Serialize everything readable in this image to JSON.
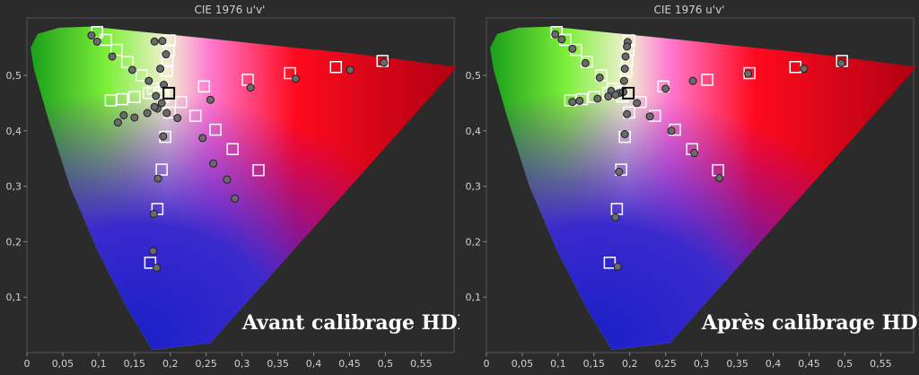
{
  "chart_data": [
    {
      "type": "scatter",
      "title": "CIE 1976 u'v'",
      "caption": "Avant calibrage HDR",
      "xlim": [
        0,
        0.6
      ],
      "ylim": [
        0,
        0.59
      ],
      "x_ticks": [
        "0",
        "0,05",
        "0,1",
        "0,15",
        "0,2",
        "0,25",
        "0,3",
        "0,35",
        "0,4",
        "0,45",
        "0,5",
        "0,55"
      ],
      "y_ticks": [
        "0,1",
        "0,2",
        "0,3",
        "0,4",
        "0,5"
      ],
      "series": [
        {
          "marker": "square",
          "points": [
            [
              0.098,
              0.578
            ],
            [
              0.11,
              0.564
            ],
            [
              0.125,
              0.546
            ],
            [
              0.14,
              0.524
            ],
            [
              0.16,
              0.5
            ],
            [
              0.176,
              0.476
            ],
            [
              0.19,
              0.462
            ],
            [
              0.198,
              0.47
            ],
            [
              0.199,
              0.563
            ],
            [
              0.198,
              0.545
            ],
            [
              0.196,
              0.526
            ],
            [
              0.195,
              0.508
            ],
            [
              0.117,
              0.455
            ],
            [
              0.133,
              0.457
            ],
            [
              0.15,
              0.461
            ],
            [
              0.17,
              0.468
            ],
            [
              0.187,
              0.47
            ],
            [
              0.199,
              0.433
            ],
            [
              0.193,
              0.389
            ],
            [
              0.188,
              0.33
            ],
            [
              0.182,
              0.259
            ],
            [
              0.172,
              0.162
            ],
            [
              0.215,
              0.452
            ],
            [
              0.235,
              0.427
            ],
            [
              0.247,
              0.48
            ],
            [
              0.263,
              0.402
            ],
            [
              0.287,
              0.367
            ],
            [
              0.323,
              0.329
            ],
            [
              0.308,
              0.492
            ],
            [
              0.367,
              0.504
            ],
            [
              0.431,
              0.515
            ],
            [
              0.496,
              0.526
            ]
          ]
        },
        {
          "marker": "dot",
          "points": [
            [
              0.09,
              0.572
            ],
            [
              0.098,
              0.561
            ],
            [
              0.119,
              0.534
            ],
            [
              0.147,
              0.51
            ],
            [
              0.17,
              0.49
            ],
            [
              0.18,
              0.463
            ],
            [
              0.182,
              0.44
            ],
            [
              0.178,
              0.561
            ],
            [
              0.189,
              0.562
            ],
            [
              0.194,
              0.538
            ],
            [
              0.186,
              0.512
            ],
            [
              0.191,
              0.483
            ],
            [
              0.188,
              0.45
            ],
            [
              0.127,
              0.415
            ],
            [
              0.135,
              0.428
            ],
            [
              0.15,
              0.424
            ],
            [
              0.168,
              0.432
            ],
            [
              0.178,
              0.443
            ],
            [
              0.195,
              0.432
            ],
            [
              0.21,
              0.423
            ],
            [
              0.19,
              0.39
            ],
            [
              0.183,
              0.314
            ],
            [
              0.177,
              0.25
            ],
            [
              0.176,
              0.183
            ],
            [
              0.181,
              0.153
            ],
            [
              0.256,
              0.456
            ],
            [
              0.245,
              0.387
            ],
            [
              0.26,
              0.341
            ],
            [
              0.279,
              0.312
            ],
            [
              0.29,
              0.278
            ],
            [
              0.312,
              0.478
            ],
            [
              0.375,
              0.494
            ],
            [
              0.451,
              0.51
            ],
            [
              0.498,
              0.523
            ]
          ]
        }
      ],
      "white_point": [
        0.198,
        0.468
      ]
    },
    {
      "type": "scatter",
      "title": "CIE 1976 u'v'",
      "caption": "Après calibrage HDR",
      "xlim": [
        0,
        0.6
      ],
      "ylim": [
        0,
        0.59
      ],
      "x_ticks": [
        "0",
        "0,05",
        "0,1",
        "0,15",
        "0,2",
        "0,25",
        "0,3",
        "0,35",
        "0,4",
        "0,45",
        "0,5",
        "0,55"
      ],
      "y_ticks": [
        "0,1",
        "0,2",
        "0,3",
        "0,4",
        "0,5"
      ],
      "series": [
        {
          "marker": "square",
          "points": [
            [
              0.098,
              0.578
            ],
            [
              0.11,
              0.564
            ],
            [
              0.125,
              0.546
            ],
            [
              0.14,
              0.524
            ],
            [
              0.16,
              0.5
            ],
            [
              0.176,
              0.476
            ],
            [
              0.19,
              0.462
            ],
            [
              0.198,
              0.47
            ],
            [
              0.199,
              0.563
            ],
            [
              0.198,
              0.545
            ],
            [
              0.196,
              0.526
            ],
            [
              0.195,
              0.508
            ],
            [
              0.117,
              0.455
            ],
            [
              0.133,
              0.457
            ],
            [
              0.15,
              0.461
            ],
            [
              0.17,
              0.468
            ],
            [
              0.187,
              0.47
            ],
            [
              0.199,
              0.433
            ],
            [
              0.193,
              0.389
            ],
            [
              0.188,
              0.33
            ],
            [
              0.182,
              0.259
            ],
            [
              0.172,
              0.162
            ],
            [
              0.215,
              0.452
            ],
            [
              0.235,
              0.427
            ],
            [
              0.247,
              0.48
            ],
            [
              0.263,
              0.402
            ],
            [
              0.287,
              0.367
            ],
            [
              0.323,
              0.329
            ],
            [
              0.308,
              0.492
            ],
            [
              0.367,
              0.504
            ],
            [
              0.431,
              0.515
            ],
            [
              0.496,
              0.526
            ]
          ]
        },
        {
          "marker": "dot",
          "points": [
            [
              0.096,
              0.574
            ],
            [
              0.105,
              0.565
            ],
            [
              0.12,
              0.548
            ],
            [
              0.138,
              0.522
            ],
            [
              0.158,
              0.496
            ],
            [
              0.174,
              0.472
            ],
            [
              0.185,
              0.468
            ],
            [
              0.197,
              0.56
            ],
            [
              0.196,
              0.552
            ],
            [
              0.194,
              0.534
            ],
            [
              0.193,
              0.512
            ],
            [
              0.192,
              0.49
            ],
            [
              0.191,
              0.47
            ],
            [
              0.12,
              0.452
            ],
            [
              0.13,
              0.454
            ],
            [
              0.155,
              0.458
            ],
            [
              0.17,
              0.462
            ],
            [
              0.18,
              0.465
            ],
            [
              0.196,
              0.43
            ],
            [
              0.193,
              0.394
            ],
            [
              0.185,
              0.326
            ],
            [
              0.18,
              0.244
            ],
            [
              0.183,
              0.155
            ],
            [
              0.21,
              0.45
            ],
            [
              0.228,
              0.426
            ],
            [
              0.25,
              0.476
            ],
            [
              0.258,
              0.4
            ],
            [
              0.29,
              0.36
            ],
            [
              0.325,
              0.315
            ],
            [
              0.288,
              0.49
            ],
            [
              0.365,
              0.503
            ],
            [
              0.443,
              0.512
            ],
            [
              0.495,
              0.522
            ]
          ]
        }
      ],
      "white_point": [
        0.198,
        0.468
      ]
    }
  ]
}
